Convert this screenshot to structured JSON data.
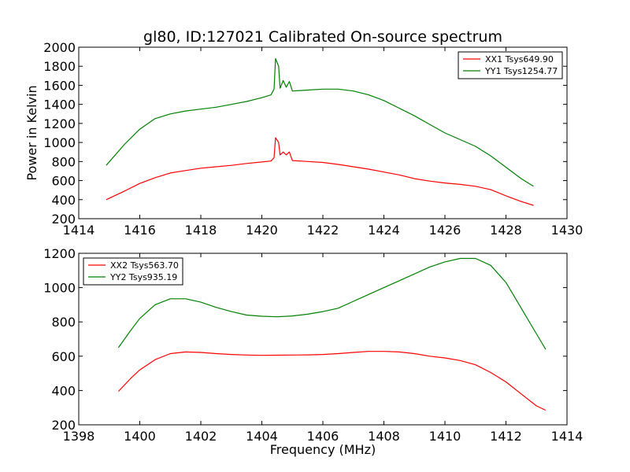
{
  "figure": {
    "title": "gl80, ID:127021 Calibrated On-source spectrum",
    "ylabel": "Power in Kelvin",
    "xlabel": "Frequency (MHz)"
  },
  "chart_data": [
    {
      "type": "line",
      "title": "gl80, ID:127021 Calibrated On-source spectrum",
      "xlabel": "",
      "ylabel": "Power in Kelvin",
      "xlim": [
        1414,
        1430
      ],
      "ylim": [
        200,
        2000
      ],
      "xticks": [
        1414,
        1416,
        1418,
        1420,
        1422,
        1424,
        1426,
        1428,
        1430
      ],
      "yticks": [
        200,
        400,
        600,
        800,
        1000,
        1200,
        1400,
        1600,
        1800,
        2000
      ],
      "grid": false,
      "legend_position": "top-right",
      "series": [
        {
          "name": "XX1 Tsys649.90",
          "color": "#ff0000",
          "x": [
            1414.9,
            1415.5,
            1416.0,
            1416.5,
            1417.0,
            1417.5,
            1418.0,
            1418.5,
            1419.0,
            1419.5,
            1420.0,
            1420.3,
            1420.4,
            1420.45,
            1420.55,
            1420.6,
            1420.7,
            1420.8,
            1420.9,
            1421.0,
            1421.5,
            1422.0,
            1422.5,
            1423.0,
            1423.5,
            1424.0,
            1424.5,
            1425.0,
            1425.5,
            1426.0,
            1426.5,
            1427.0,
            1427.5,
            1428.0,
            1428.5,
            1428.9
          ],
          "values": [
            400,
            490,
            570,
            630,
            680,
            705,
            730,
            745,
            760,
            780,
            795,
            805,
            840,
            1050,
            1000,
            870,
            900,
            870,
            900,
            810,
            800,
            790,
            770,
            745,
            720,
            690,
            660,
            620,
            595,
            575,
            560,
            540,
            505,
            440,
            380,
            340
          ]
        },
        {
          "name": "YY1 Tsys1254.77",
          "color": "#008000",
          "x": [
            1414.9,
            1415.5,
            1416.0,
            1416.5,
            1417.0,
            1417.5,
            1418.0,
            1418.5,
            1419.0,
            1419.5,
            1420.0,
            1420.3,
            1420.4,
            1420.45,
            1420.55,
            1420.6,
            1420.7,
            1420.8,
            1420.9,
            1421.0,
            1421.5,
            1422.0,
            1422.5,
            1423.0,
            1423.5,
            1424.0,
            1424.5,
            1425.0,
            1425.5,
            1426.0,
            1426.5,
            1427.0,
            1427.5,
            1428.0,
            1428.5,
            1428.9
          ],
          "values": [
            760,
            980,
            1140,
            1250,
            1300,
            1330,
            1350,
            1370,
            1400,
            1430,
            1470,
            1500,
            1560,
            1880,
            1800,
            1570,
            1650,
            1580,
            1640,
            1540,
            1550,
            1560,
            1560,
            1540,
            1500,
            1440,
            1360,
            1280,
            1190,
            1100,
            1030,
            960,
            860,
            740,
            620,
            540
          ]
        }
      ]
    },
    {
      "type": "line",
      "title": "",
      "xlabel": "Frequency (MHz)",
      "ylabel": "",
      "xlim": [
        1398,
        1414
      ],
      "ylim": [
        200,
        1200
      ],
      "xticks": [
        1398,
        1400,
        1402,
        1404,
        1406,
        1408,
        1410,
        1412,
        1414
      ],
      "yticks": [
        200,
        400,
        600,
        800,
        1000,
        1200
      ],
      "grid": false,
      "legend_position": "top-left",
      "series": [
        {
          "name": "XX2 Tsys563.70",
          "color": "#ff0000",
          "x": [
            1399.3,
            1399.7,
            1400.0,
            1400.5,
            1401.0,
            1401.5,
            1402.0,
            1402.5,
            1403.0,
            1403.5,
            1404.0,
            1404.5,
            1405.0,
            1405.5,
            1406.0,
            1406.5,
            1407.0,
            1407.5,
            1408.0,
            1408.5,
            1409.0,
            1409.5,
            1410.0,
            1410.5,
            1411.0,
            1411.5,
            1412.0,
            1412.5,
            1413.0,
            1413.3
          ],
          "values": [
            395,
            470,
            520,
            580,
            615,
            625,
            622,
            615,
            610,
            607,
            605,
            606,
            607,
            608,
            610,
            615,
            622,
            628,
            628,
            625,
            615,
            600,
            590,
            575,
            550,
            505,
            450,
            380,
            310,
            285
          ]
        },
        {
          "name": "YY2 Tsys935.19",
          "color": "#008000",
          "x": [
            1399.3,
            1399.7,
            1400.0,
            1400.5,
            1401.0,
            1401.5,
            1402.0,
            1402.5,
            1403.0,
            1403.5,
            1404.0,
            1404.5,
            1405.0,
            1405.5,
            1406.0,
            1406.5,
            1407.0,
            1407.5,
            1408.0,
            1408.5,
            1409.0,
            1409.5,
            1410.0,
            1410.5,
            1411.0,
            1411.5,
            1412.0,
            1412.5,
            1413.0,
            1413.3
          ],
          "values": [
            650,
            750,
            820,
            900,
            935,
            935,
            915,
            885,
            860,
            840,
            833,
            830,
            835,
            845,
            860,
            880,
            920,
            960,
            1000,
            1040,
            1080,
            1120,
            1150,
            1170,
            1170,
            1130,
            1030,
            880,
            730,
            640
          ]
        }
      ]
    }
  ]
}
